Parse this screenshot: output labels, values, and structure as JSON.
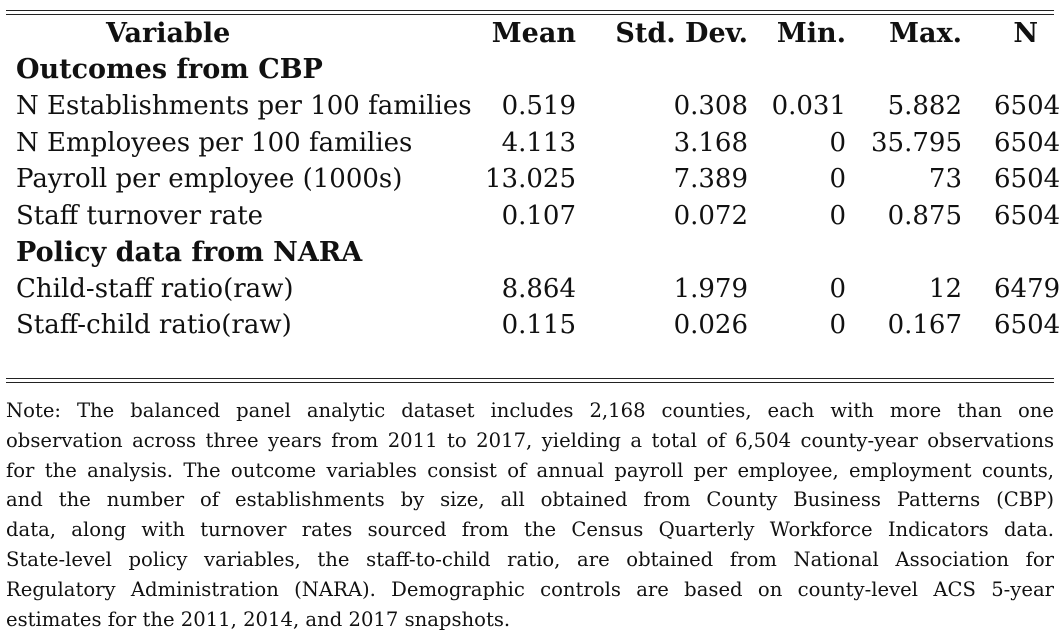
{
  "table": {
    "headers": [
      "Variable",
      "Mean",
      "Std. Dev.",
      "Min.",
      "Max.",
      "N"
    ],
    "sections": [
      {
        "title": "Outcomes from CBP",
        "rows": [
          {
            "variable": "N Establishments per 100 families",
            "mean": "0.519",
            "sd": "0.308",
            "min": "0.031",
            "max": "5.882",
            "n": "6504"
          },
          {
            "variable": "N Employees per 100 families",
            "mean": "4.113",
            "sd": "3.168",
            "min": "0",
            "max": "35.795",
            "n": "6504"
          },
          {
            "variable": "Payroll per employee (1000s)",
            "mean": "13.025",
            "sd": "7.389",
            "min": "0",
            "max": "73",
            "n": "6504"
          },
          {
            "variable": "Staff turnover rate",
            "mean": "0.107",
            "sd": "0.072",
            "min": "0",
            "max": "0.875",
            "n": "6504"
          }
        ]
      },
      {
        "title": "Policy data from NARA",
        "rows": [
          {
            "variable": "Child-staff ratio(raw)",
            "mean": "8.864",
            "sd": "1.979",
            "min": "0",
            "max": "12",
            "n": "6479"
          },
          {
            "variable": "Staff-child ratio(raw)",
            "mean": "0.115",
            "sd": "0.026",
            "min": "0",
            "max": "0.167",
            "n": "6504"
          }
        ]
      }
    ]
  },
  "note": {
    "lines": [
      "Note: The balanced panel analytic dataset includes 2,168 counties, each with more than one",
      "observation across three years from 2011 to 2017, yielding a total of 6,504 county-year observations",
      "for the analysis. The outcome variables consist of annual payroll per employee, employment counts,",
      "and the number of establishments by size, all obtained from County Business Patterns (CBP)",
      "data, along with turnover rates sourced from the Census Quarterly Workforce Indicators data.",
      "State-level policy variables, the staff-to-child ratio, are obtained from National Association for",
      "Regulatory Administration (NARA). Demographic controls are based on county-level ACS 5-year",
      "estimates for the 2011, 2014, and 2017 snapshots."
    ]
  }
}
